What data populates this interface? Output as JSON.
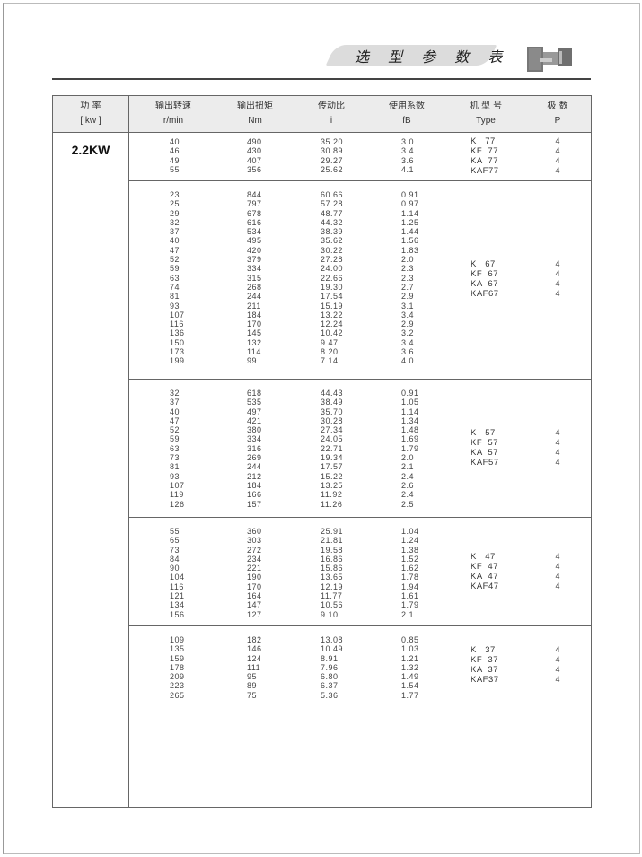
{
  "header": {
    "title": "选 型 参 数 表",
    "image": "gear-motor-photo"
  },
  "table": {
    "columns": [
      {
        "label": "功  率",
        "unit": "[ kw ]"
      },
      {
        "label": "输出转速",
        "unit": "r/min"
      },
      {
        "label": "输出扭矩",
        "unit": "Nm"
      },
      {
        "label": "传动比",
        "unit": "i"
      },
      {
        "label": "使用系数",
        "unit": "fB"
      },
      {
        "label": "机 型 号",
        "unit": "Type"
      },
      {
        "label": "极  数",
        "unit": "P"
      }
    ],
    "power": "2.2KW",
    "sections": [
      {
        "speed": [
          "40",
          "46",
          "49",
          "55"
        ],
        "torque": [
          "490",
          "430",
          "407",
          "356"
        ],
        "ratio": [
          "35.20",
          "30.89",
          "29.27",
          "25.62"
        ],
        "fb": [
          "3.0",
          "3.4",
          "3.6",
          "4.1"
        ],
        "types": [
          "K   77",
          "KF  77",
          "KA  77",
          "KAF77"
        ],
        "poles": [
          "4",
          "4",
          "4",
          "4"
        ]
      },
      {
        "speed": [
          "23",
          "25",
          "29",
          "32",
          "37",
          "40",
          "47",
          "52",
          "59",
          "63",
          "74",
          "81",
          "93",
          "107",
          "116",
          "136",
          "150",
          "173",
          "199"
        ],
        "torque": [
          "844",
          "797",
          "678",
          "616",
          "534",
          "495",
          "420",
          "379",
          "334",
          "315",
          "268",
          "244",
          "211",
          "184",
          "170",
          "145",
          "132",
          "114",
          "99"
        ],
        "ratio": [
          "60.66",
          "57.28",
          "48.77",
          "44.32",
          "38.39",
          "35.62",
          "30.22",
          "27.28",
          "24.00",
          "22.66",
          "19.30",
          "17.54",
          "15.19",
          "13.22",
          "12.24",
          "10.42",
          "9.47",
          "8.20",
          "7.14"
        ],
        "fb": [
          "0.91",
          "0.97",
          "1.14",
          "1.25",
          "1.44",
          "1.56",
          "1.83",
          "2.0",
          "2.3",
          "2.3",
          "2.7",
          "2.9",
          "3.1",
          "3.4",
          "2.9",
          "3.2",
          "3.4",
          "3.6",
          "4.0"
        ],
        "types": [
          "K   67",
          "KF  67",
          "KA  67",
          "KAF67"
        ],
        "poles": [
          "4",
          "4",
          "4",
          "4"
        ]
      },
      {
        "speed": [
          "32",
          "37",
          "40",
          "47",
          "52",
          "59",
          "63",
          "73",
          "81",
          "93",
          "107",
          "119",
          "126"
        ],
        "torque": [
          "618",
          "535",
          "497",
          "421",
          "380",
          "334",
          "316",
          "269",
          "244",
          "212",
          "184",
          "166",
          "157"
        ],
        "ratio": [
          "44.43",
          "38.49",
          "35.70",
          "30.28",
          "27.34",
          "24.05",
          "22.71",
          "19.34",
          "17.57",
          "15.22",
          "13.25",
          "11.92",
          "11.26"
        ],
        "fb": [
          "0.91",
          "1.05",
          "1.14",
          "1.34",
          "1.48",
          "1.69",
          "1.79",
          "2.0",
          "2.1",
          "2.4",
          "2.6",
          "2.4",
          "2.5"
        ],
        "types": [
          "K   57",
          "KF  57",
          "KA  57",
          "KAF57"
        ],
        "poles": [
          "4",
          "4",
          "4",
          "4"
        ]
      },
      {
        "speed": [
          "55",
          "65",
          "73",
          "84",
          "90",
          "104",
          "116",
          "121",
          "134",
          "156"
        ],
        "torque": [
          "360",
          "303",
          "272",
          "234",
          "221",
          "190",
          "170",
          "164",
          "147",
          "127"
        ],
        "ratio": [
          "25.91",
          "21.81",
          "19.58",
          "16.86",
          "15.86",
          "13.65",
          "12.19",
          "11.77",
          "10.56",
          "9.10"
        ],
        "fb": [
          "1.04",
          "1.24",
          "1.38",
          "1.52",
          "1.62",
          "1.78",
          "1.94",
          "1.61",
          "1.79",
          "2.1"
        ],
        "types": [
          "K   47",
          "KF  47",
          "KA  47",
          "KAF47"
        ],
        "poles": [
          "4",
          "4",
          "4",
          "4"
        ]
      },
      {
        "speed": [
          "109",
          "135",
          "159",
          "178",
          "209",
          "223",
          "265"
        ],
        "torque": [
          "182",
          "146",
          "124",
          "111",
          "95",
          "89",
          "75"
        ],
        "ratio": [
          "13.08",
          "10.49",
          "8.91",
          "7.96",
          "6.80",
          "6.37",
          "5.36"
        ],
        "fb": [
          "0.85",
          "1.03",
          "1.21",
          "1.32",
          "1.49",
          "1.54",
          "1.77"
        ],
        "types": [
          "K   37",
          "KF  37",
          "KA  37",
          "KAF37"
        ],
        "poles": [
          "4",
          "4",
          "4",
          "4"
        ]
      }
    ]
  }
}
